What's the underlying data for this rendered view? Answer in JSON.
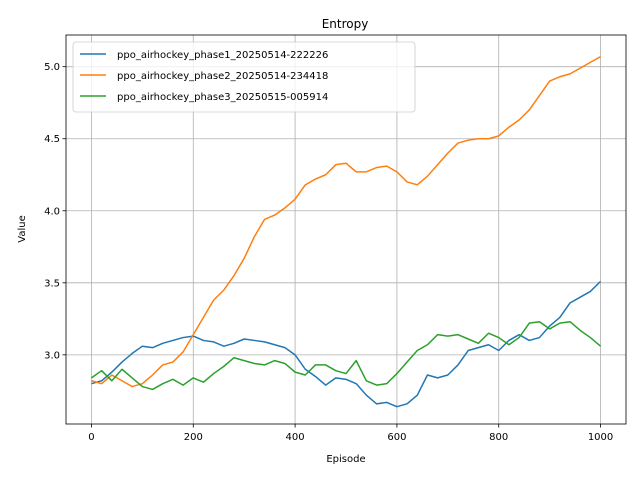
{
  "chart_data": {
    "type": "line",
    "title": "Entropy",
    "xlabel": "Episode",
    "ylabel": "Value",
    "xlim": [
      -50,
      1050
    ],
    "ylim": [
      2.52,
      5.22
    ],
    "xticks": [
      0,
      200,
      400,
      600,
      800,
      1000
    ],
    "xtick_labels": [
      "0",
      "200",
      "400",
      "600",
      "800",
      "1000"
    ],
    "yticks": [
      3.0,
      3.5,
      4.0,
      4.5,
      5.0
    ],
    "ytick_labels": [
      "3.0",
      "3.5",
      "4.0",
      "4.5",
      "5.0"
    ],
    "grid": true,
    "legend_position": "upper-left",
    "series": [
      {
        "name": "ppo_airhockey_phase1_20250514-222226",
        "color": "#1f77b4",
        "x": [
          0,
          20,
          40,
          60,
          80,
          100,
          120,
          140,
          160,
          180,
          200,
          220,
          240,
          260,
          280,
          300,
          320,
          340,
          360,
          380,
          400,
          420,
          440,
          460,
          480,
          500,
          520,
          540,
          560,
          580,
          600,
          620,
          640,
          660,
          680,
          700,
          720,
          740,
          760,
          780,
          800,
          820,
          840,
          860,
          880,
          900,
          920,
          940,
          960,
          980,
          1000
        ],
        "y": [
          2.8,
          2.82,
          2.88,
          2.95,
          3.01,
          3.06,
          3.05,
          3.08,
          3.1,
          3.12,
          3.13,
          3.1,
          3.09,
          3.06,
          3.08,
          3.11,
          3.1,
          3.09,
          3.07,
          3.05,
          3.0,
          2.9,
          2.85,
          2.79,
          2.84,
          2.83,
          2.8,
          2.72,
          2.66,
          2.67,
          2.64,
          2.66,
          2.72,
          2.86,
          2.84,
          2.86,
          2.93,
          3.03,
          3.05,
          3.07,
          3.03,
          3.1,
          3.14,
          3.1,
          3.12,
          3.2,
          3.26,
          3.36,
          3.4,
          3.44,
          3.51
        ]
      },
      {
        "name": "ppo_airhockey_phase2_20250514-234418",
        "color": "#ff7f0e",
        "x": [
          0,
          20,
          40,
          60,
          80,
          100,
          120,
          140,
          160,
          180,
          200,
          220,
          240,
          260,
          280,
          300,
          320,
          340,
          360,
          380,
          400,
          420,
          440,
          460,
          480,
          500,
          520,
          540,
          560,
          580,
          600,
          620,
          640,
          660,
          680,
          700,
          720,
          740,
          760,
          780,
          800,
          820,
          840,
          860,
          880,
          900,
          920,
          940,
          960,
          980,
          1000
        ],
        "y": [
          2.82,
          2.8,
          2.86,
          2.82,
          2.78,
          2.8,
          2.86,
          2.93,
          2.95,
          3.02,
          3.14,
          3.26,
          3.38,
          3.45,
          3.55,
          3.67,
          3.82,
          3.94,
          3.97,
          4.02,
          4.08,
          4.18,
          4.22,
          4.25,
          4.32,
          4.33,
          4.27,
          4.27,
          4.3,
          4.31,
          4.27,
          4.2,
          4.18,
          4.24,
          4.32,
          4.4,
          4.47,
          4.49,
          4.5,
          4.5,
          4.52,
          4.58,
          4.63,
          4.7,
          4.8,
          4.9,
          4.93,
          4.95,
          4.99,
          5.03,
          5.07
        ]
      },
      {
        "name": "ppo_airhockey_phase3_20250515-005914",
        "color": "#2ca02c",
        "x": [
          0,
          20,
          40,
          60,
          80,
          100,
          120,
          140,
          160,
          180,
          200,
          220,
          240,
          260,
          280,
          300,
          320,
          340,
          360,
          380,
          400,
          420,
          440,
          460,
          480,
          500,
          520,
          540,
          560,
          580,
          600,
          620,
          640,
          660,
          680,
          700,
          720,
          740,
          760,
          780,
          800,
          820,
          840,
          860,
          880,
          900,
          920,
          940,
          960,
          980,
          1000
        ],
        "y": [
          2.84,
          2.89,
          2.82,
          2.9,
          2.84,
          2.78,
          2.76,
          2.8,
          2.83,
          2.79,
          2.84,
          2.81,
          2.87,
          2.92,
          2.98,
          2.96,
          2.94,
          2.93,
          2.96,
          2.94,
          2.88,
          2.86,
          2.93,
          2.93,
          2.89,
          2.87,
          2.96,
          2.82,
          2.79,
          2.8,
          2.87,
          2.95,
          3.03,
          3.07,
          3.14,
          3.13,
          3.14,
          3.11,
          3.08,
          3.15,
          3.12,
          3.07,
          3.12,
          3.22,
          3.23,
          3.18,
          3.22,
          3.23,
          3.17,
          3.12,
          3.06
        ]
      }
    ]
  }
}
